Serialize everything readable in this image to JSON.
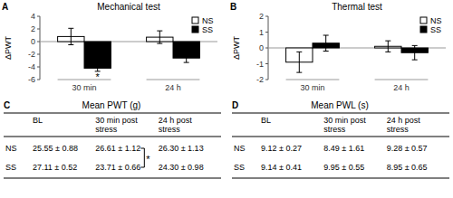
{
  "chart_data": [
    {
      "type": "bar",
      "panel_label": "A",
      "title": "Mechanical test",
      "y_label": "ΔPWT",
      "categories": [
        "30 min",
        "24 h"
      ],
      "series": [
        {
          "name": "NS",
          "color": "white",
          "values": [
            0.8,
            0.7
          ],
          "errors": [
            1.3,
            1.0
          ]
        },
        {
          "name": "SS",
          "color": "black",
          "values": [
            -4.2,
            -2.6
          ],
          "errors": [
            0.5,
            0.7
          ]
        }
      ],
      "ylim": [
        -6,
        4
      ],
      "yticks": [
        -6,
        -4,
        -2,
        0,
        2,
        4
      ],
      "legend": "upper right",
      "annotations": [
        "*"
      ]
    },
    {
      "type": "bar",
      "panel_label": "B",
      "title": "Thermal test",
      "y_label": "ΔPWT",
      "categories": [
        "30 min",
        "24 h"
      ],
      "series": [
        {
          "name": "NS",
          "color": "white",
          "values": [
            -0.9,
            0.1
          ],
          "errors": [
            0.65,
            0.35
          ]
        },
        {
          "name": "SS",
          "color": "black",
          "values": [
            0.3,
            -0.3
          ],
          "errors": [
            0.5,
            0.45
          ]
        }
      ],
      "ylim": [
        -2,
        2
      ],
      "yticks": [
        -2,
        -1,
        0,
        1,
        2
      ],
      "legend": "upper right"
    },
    {
      "type": "table",
      "panel_label": "C",
      "title": "Mean PWT (g)",
      "columns": [
        "BL",
        "30 min post stress",
        "24 h post\nstress"
      ],
      "rows": [
        {
          "name": "NS",
          "values": [
            "25.55 ± 0.88",
            "26.61 ± 1.12",
            "26.30 ± 1.13"
          ]
        },
        {
          "name": "SS",
          "values": [
            "27.11 ± 0.52",
            "23.71 ± 0.66",
            "24.30 ± 0.98"
          ]
        }
      ],
      "annotations": [
        "*"
      ]
    },
    {
      "type": "table",
      "panel_label": "D",
      "title": "Mean PWL (s)",
      "columns": [
        "BL",
        "30 min post stress",
        "24 h post\nstress"
      ],
      "rows": [
        {
          "name": "NS",
          "values": [
            "9.12 ± 0.27",
            "8.49 ± 1.61",
            "9.28 ± 0.57"
          ]
        },
        {
          "name": "SS",
          "values": [
            "9.14 ± 0.41",
            "9.95 ± 0.55",
            "8.95 ± 0.65"
          ]
        }
      ]
    }
  ]
}
